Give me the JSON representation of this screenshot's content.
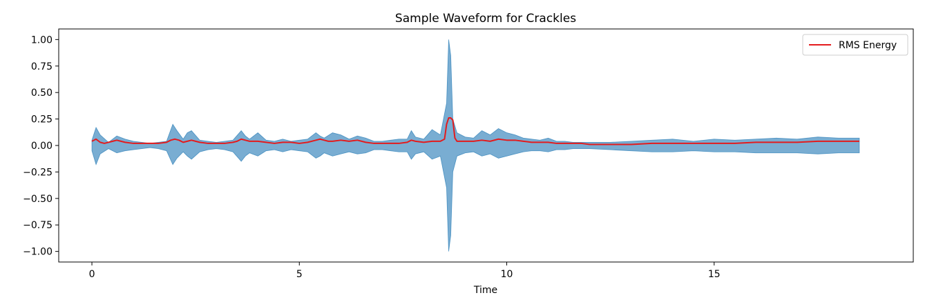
{
  "chart_data": {
    "type": "line",
    "title": "Sample Waveform for Crackles",
    "xlabel": "Time",
    "ylabel": "",
    "xlim": [
      -0.8,
      19.8
    ],
    "ylim": [
      -1.1,
      1.1
    ],
    "xticks": [
      0,
      5,
      10,
      15
    ],
    "xtick_labels": [
      "0",
      "5",
      "10",
      "15"
    ],
    "yticks": [
      1.0,
      0.75,
      0.5,
      0.25,
      0.0,
      -0.25,
      -0.5,
      -0.75,
      -1.0
    ],
    "ytick_labels": [
      "1.00",
      "0.75",
      "0.50",
      "0.25",
      "0.00",
      "−0.25",
      "−0.50",
      "−0.75",
      "−1.00"
    ],
    "grid": false,
    "legend": {
      "placement": "top-right",
      "entries": [
        "RMS Energy"
      ]
    },
    "series": [
      {
        "name": "",
        "kind": "waveform-envelope",
        "color": "#1f77b4",
        "x": [
          0,
          0.1,
          0.2,
          0.4,
          0.6,
          0.8,
          1.0,
          1.2,
          1.4,
          1.6,
          1.8,
          1.95,
          2.05,
          2.2,
          2.3,
          2.4,
          2.6,
          2.8,
          3.0,
          3.2,
          3.4,
          3.6,
          3.7,
          3.8,
          4.0,
          4.2,
          4.4,
          4.6,
          4.8,
          5.0,
          5.2,
          5.4,
          5.5,
          5.6,
          5.8,
          6.0,
          6.2,
          6.4,
          6.6,
          6.8,
          7.0,
          7.2,
          7.4,
          7.6,
          7.7,
          7.8,
          8.0,
          8.2,
          8.4,
          8.55,
          8.6,
          8.65,
          8.7,
          8.8,
          9.0,
          9.2,
          9.4,
          9.6,
          9.8,
          10.0,
          10.2,
          10.4,
          10.6,
          10.8,
          11.0,
          11.2,
          11.4,
          11.6,
          11.8,
          12.0,
          12.5,
          13.0,
          13.5,
          14.0,
          14.5,
          15.0,
          15.5,
          16.0,
          16.5,
          17.0,
          17.5,
          18.0,
          18.5
        ],
        "upper": [
          0.05,
          0.17,
          0.1,
          0.03,
          0.09,
          0.06,
          0.04,
          0.03,
          0.02,
          0.03,
          0.04,
          0.2,
          0.14,
          0.06,
          0.12,
          0.14,
          0.05,
          0.04,
          0.03,
          0.04,
          0.05,
          0.14,
          0.09,
          0.06,
          0.12,
          0.05,
          0.04,
          0.06,
          0.04,
          0.05,
          0.06,
          0.12,
          0.09,
          0.07,
          0.12,
          0.1,
          0.06,
          0.09,
          0.07,
          0.04,
          0.04,
          0.05,
          0.06,
          0.06,
          0.14,
          0.08,
          0.06,
          0.15,
          0.1,
          0.4,
          1.0,
          0.85,
          0.25,
          0.12,
          0.08,
          0.07,
          0.14,
          0.1,
          0.16,
          0.12,
          0.1,
          0.07,
          0.06,
          0.05,
          0.07,
          0.04,
          0.04,
          0.03,
          0.03,
          0.03,
          0.03,
          0.04,
          0.05,
          0.06,
          0.04,
          0.06,
          0.05,
          0.06,
          0.07,
          0.06,
          0.08,
          0.07,
          0.07
        ],
        "lower": [
          -0.05,
          -0.18,
          -0.08,
          -0.03,
          -0.07,
          -0.05,
          -0.04,
          -0.03,
          -0.02,
          -0.03,
          -0.05,
          -0.18,
          -0.12,
          -0.06,
          -0.1,
          -0.13,
          -0.06,
          -0.04,
          -0.03,
          -0.04,
          -0.06,
          -0.15,
          -0.1,
          -0.07,
          -0.1,
          -0.05,
          -0.04,
          -0.06,
          -0.04,
          -0.05,
          -0.06,
          -0.12,
          -0.1,
          -0.07,
          -0.1,
          -0.08,
          -0.06,
          -0.08,
          -0.07,
          -0.04,
          -0.04,
          -0.05,
          -0.06,
          -0.06,
          -0.13,
          -0.08,
          -0.06,
          -0.13,
          -0.1,
          -0.4,
          -1.0,
          -0.85,
          -0.25,
          -0.1,
          -0.07,
          -0.06,
          -0.1,
          -0.08,
          -0.12,
          -0.1,
          -0.08,
          -0.06,
          -0.05,
          -0.05,
          -0.06,
          -0.04,
          -0.04,
          -0.03,
          -0.03,
          -0.03,
          -0.04,
          -0.05,
          -0.06,
          -0.06,
          -0.05,
          -0.06,
          -0.06,
          -0.07,
          -0.07,
          -0.07,
          -0.08,
          -0.07,
          -0.07
        ]
      },
      {
        "name": "RMS Energy",
        "kind": "line",
        "color": "#e41a1c",
        "x": [
          0,
          0.1,
          0.2,
          0.3,
          0.4,
          0.5,
          0.6,
          0.7,
          0.8,
          1.0,
          1.2,
          1.4,
          1.6,
          1.8,
          1.9,
          2.0,
          2.1,
          2.2,
          2.3,
          2.4,
          2.5,
          2.6,
          2.8,
          3.0,
          3.2,
          3.4,
          3.5,
          3.6,
          3.7,
          3.8,
          3.9,
          4.0,
          4.2,
          4.4,
          4.6,
          4.8,
          5.0,
          5.2,
          5.4,
          5.5,
          5.6,
          5.7,
          5.8,
          6.0,
          6.2,
          6.4,
          6.6,
          6.8,
          7.0,
          7.2,
          7.4,
          7.6,
          7.7,
          7.8,
          8.0,
          8.2,
          8.4,
          8.5,
          8.55,
          8.6,
          8.65,
          8.7,
          8.75,
          8.8,
          9.0,
          9.2,
          9.4,
          9.6,
          9.8,
          10.0,
          10.2,
          10.4,
          10.6,
          10.8,
          11.0,
          11.2,
          11.4,
          11.6,
          11.8,
          12.0,
          12.5,
          13.0,
          13.5,
          14.0,
          14.5,
          15.0,
          15.5,
          16.0,
          16.5,
          17.0,
          17.5,
          18.0,
          18.5
        ],
        "y": [
          0.04,
          0.06,
          0.03,
          0.02,
          0.03,
          0.04,
          0.05,
          0.04,
          0.03,
          0.02,
          0.02,
          0.02,
          0.02,
          0.03,
          0.05,
          0.06,
          0.05,
          0.03,
          0.04,
          0.05,
          0.04,
          0.03,
          0.02,
          0.02,
          0.02,
          0.03,
          0.04,
          0.06,
          0.05,
          0.04,
          0.04,
          0.04,
          0.03,
          0.02,
          0.03,
          0.03,
          0.02,
          0.03,
          0.05,
          0.06,
          0.05,
          0.04,
          0.04,
          0.05,
          0.04,
          0.05,
          0.03,
          0.02,
          0.02,
          0.02,
          0.02,
          0.03,
          0.05,
          0.04,
          0.03,
          0.04,
          0.04,
          0.06,
          0.2,
          0.26,
          0.26,
          0.24,
          0.07,
          0.04,
          0.04,
          0.04,
          0.05,
          0.04,
          0.06,
          0.05,
          0.05,
          0.04,
          0.03,
          0.03,
          0.03,
          0.02,
          0.02,
          0.02,
          0.02,
          0.01,
          0.01,
          0.01,
          0.02,
          0.02,
          0.02,
          0.02,
          0.02,
          0.03,
          0.03,
          0.03,
          0.04,
          0.04,
          0.04
        ]
      }
    ]
  }
}
